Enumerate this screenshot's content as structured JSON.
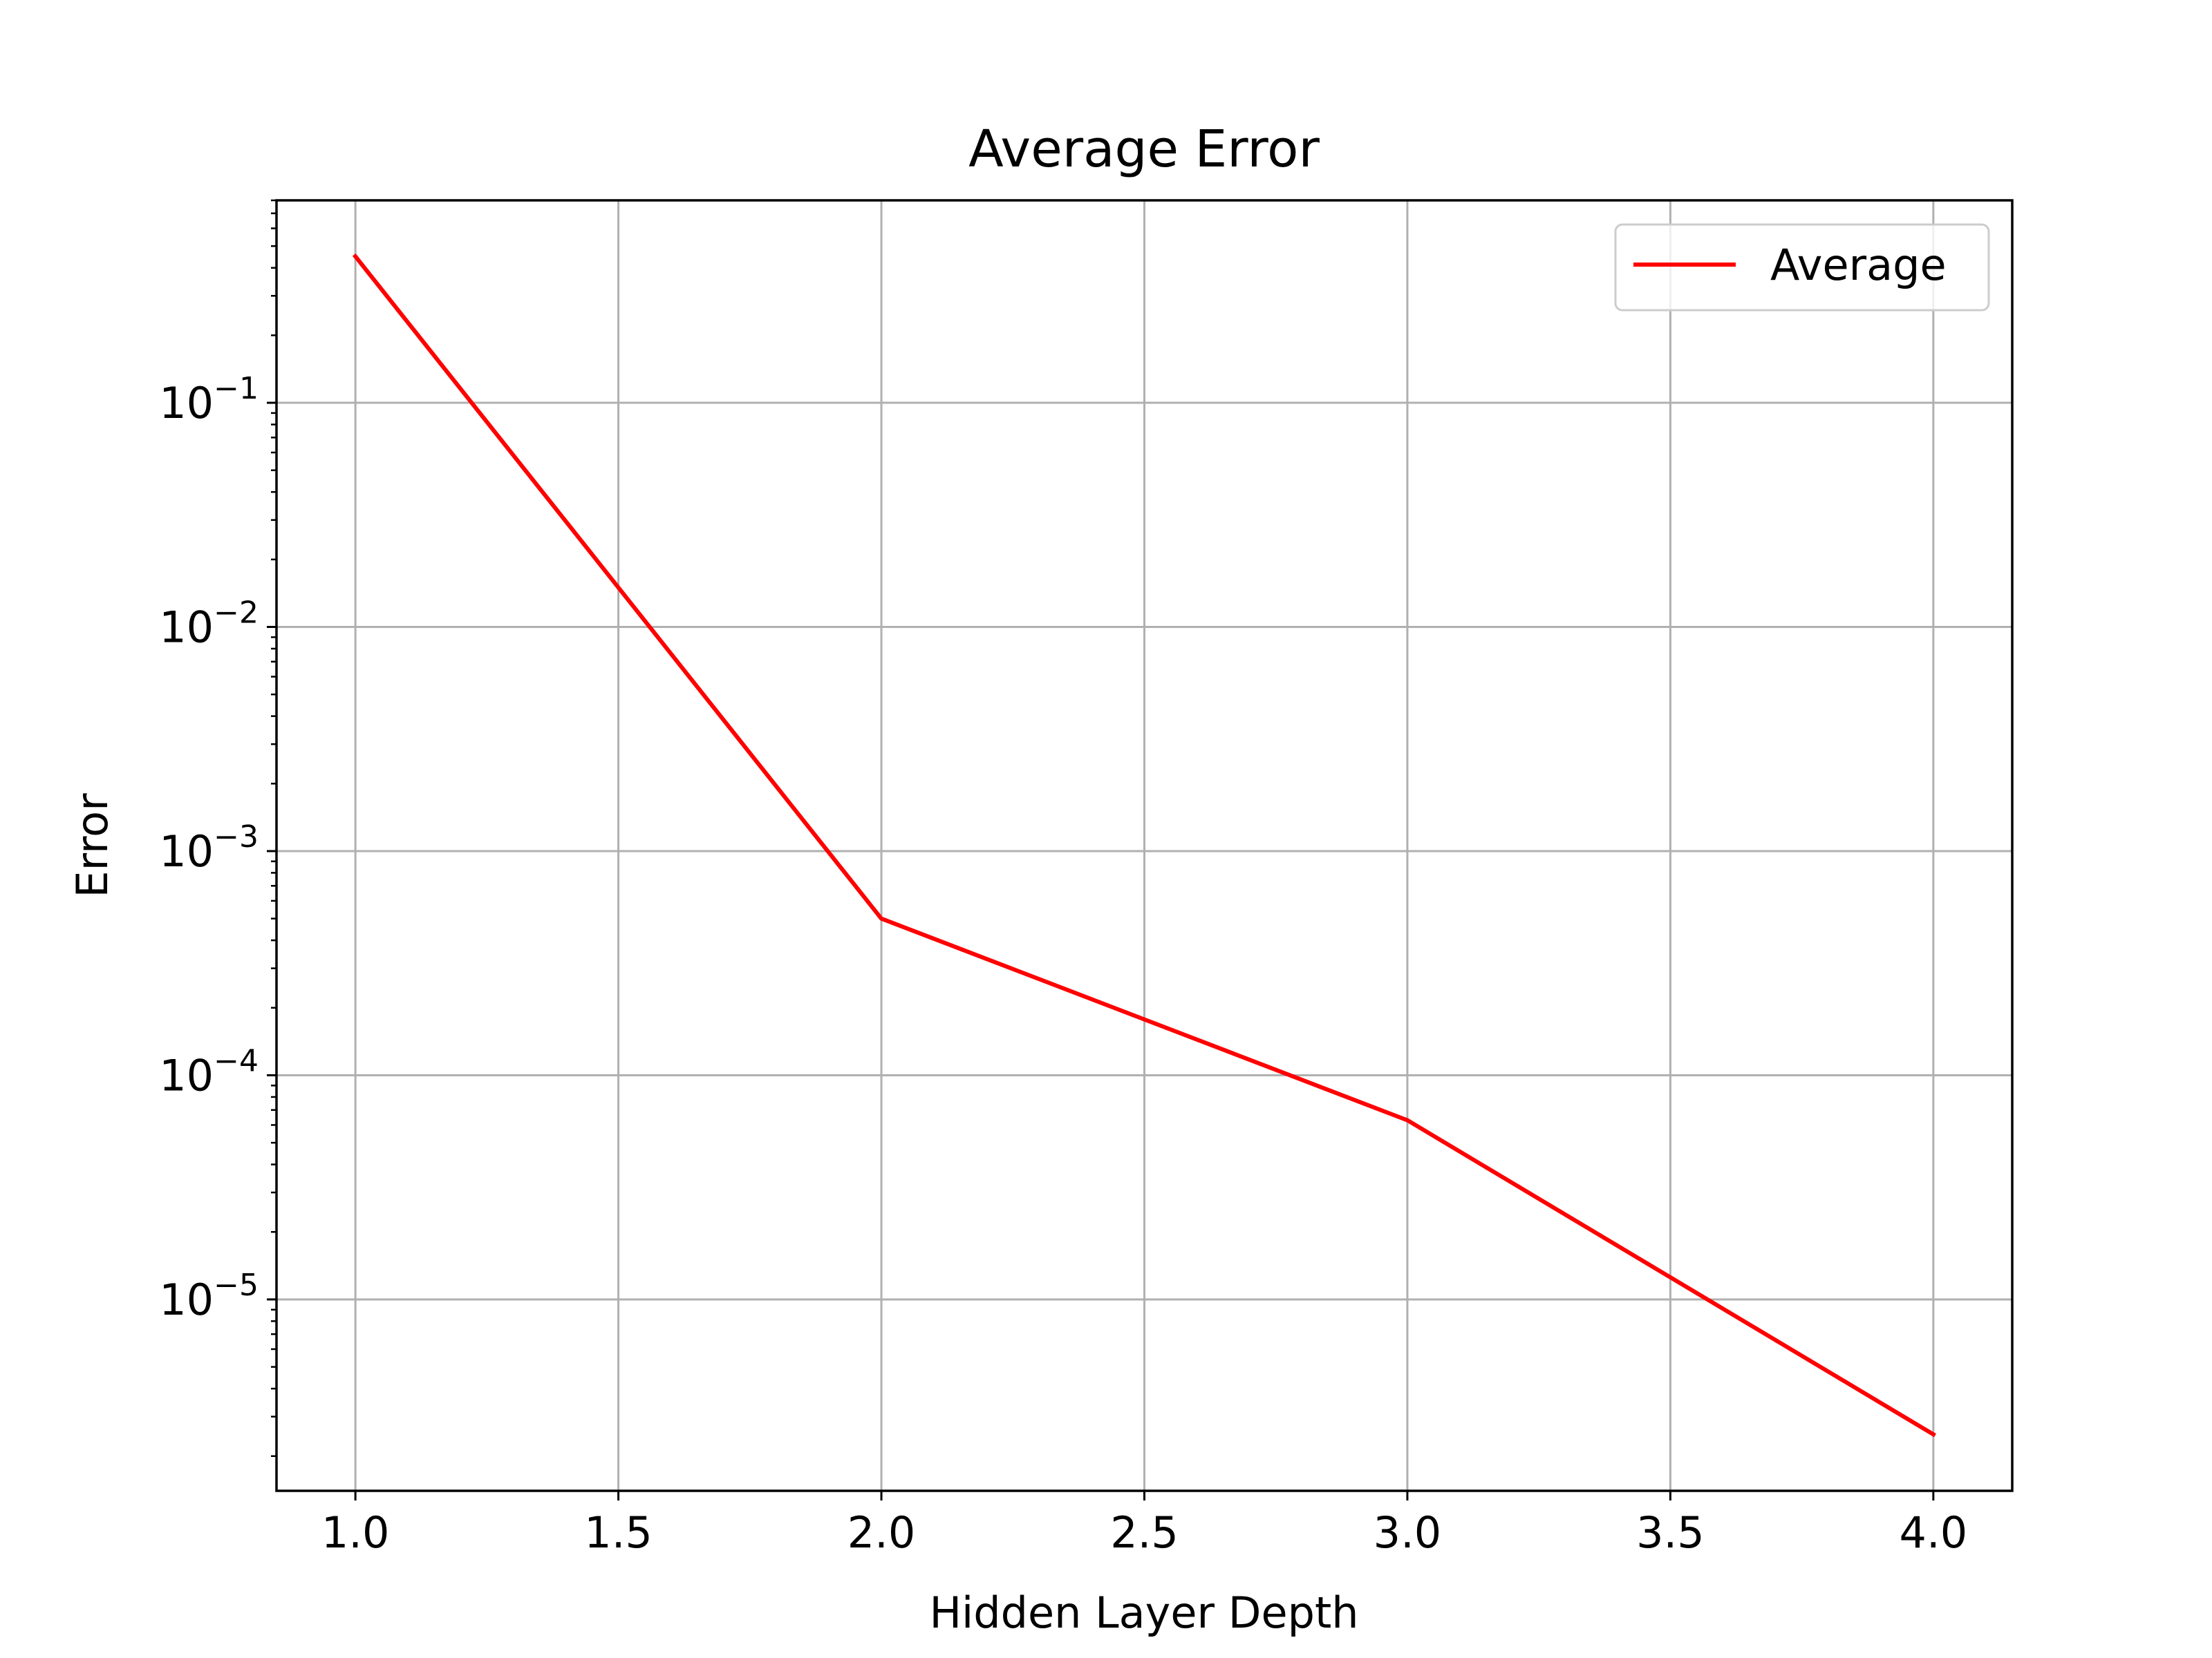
{
  "chart_data": {
    "type": "line",
    "title": "Average Error",
    "xlabel": "Hidden Layer Depth",
    "ylabel": "Error",
    "xscale": "linear",
    "yscale": "log",
    "xlim": [
      0.85,
      4.15
    ],
    "ylim": [
      1.4e-06,
      0.8
    ],
    "grid": true,
    "legend_position": "upper right",
    "x_ticks": [
      1.0,
      1.5,
      2.0,
      2.5,
      3.0,
      3.5,
      4.0
    ],
    "x_tick_labels": [
      "1.0",
      "1.5",
      "2.0",
      "2.5",
      "3.0",
      "3.5",
      "4.0"
    ],
    "y_tick_exponents": [
      -1,
      -2,
      -3,
      -4,
      -5
    ],
    "y_tick_labels": [
      "10",
      "10",
      "10",
      "10",
      "10"
    ],
    "y_tick_label_exponents": [
      "−1",
      "−2",
      "−3",
      "−4",
      "−5"
    ],
    "series": [
      {
        "name": "Average",
        "color": "#ff0000",
        "x": [
          1,
          2,
          3,
          4
        ],
        "y": [
          0.45,
          0.0005,
          6.3e-05,
          2.5e-06
        ]
      }
    ]
  }
}
